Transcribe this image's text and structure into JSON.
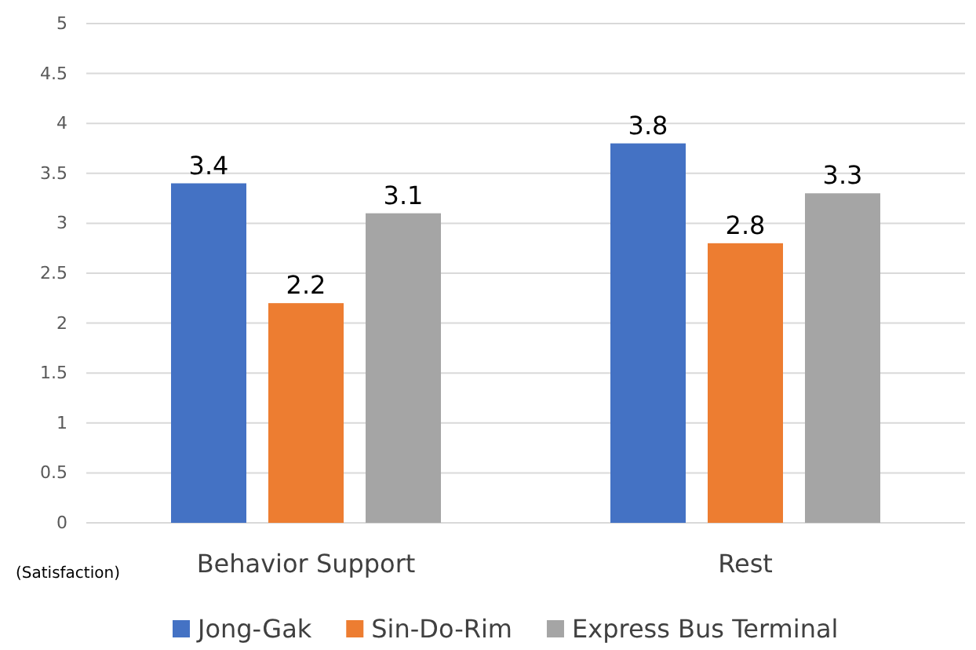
{
  "chart_data": {
    "type": "bar",
    "ylabel": "(Satisfaction)",
    "categories": [
      "Behavior Support",
      "Rest"
    ],
    "series": [
      {
        "name": "Jong-Gak",
        "color": "#4472c4",
        "values": [
          3.4,
          3.8
        ]
      },
      {
        "name": "Sin-Do-Rim",
        "color": "#ed7d31",
        "values": [
          2.2,
          2.8
        ]
      },
      {
        "name": "Express Bus Terminal",
        "color": "#a5a5a5",
        "values": [
          3.1,
          3.3
        ]
      }
    ],
    "ylim": [
      0,
      5
    ],
    "yticks": [
      0,
      0.5,
      1,
      1.5,
      2,
      2.5,
      3,
      3.5,
      4,
      4.5,
      5
    ],
    "grid": "y",
    "legend": "bottom",
    "data_labels": true
  }
}
